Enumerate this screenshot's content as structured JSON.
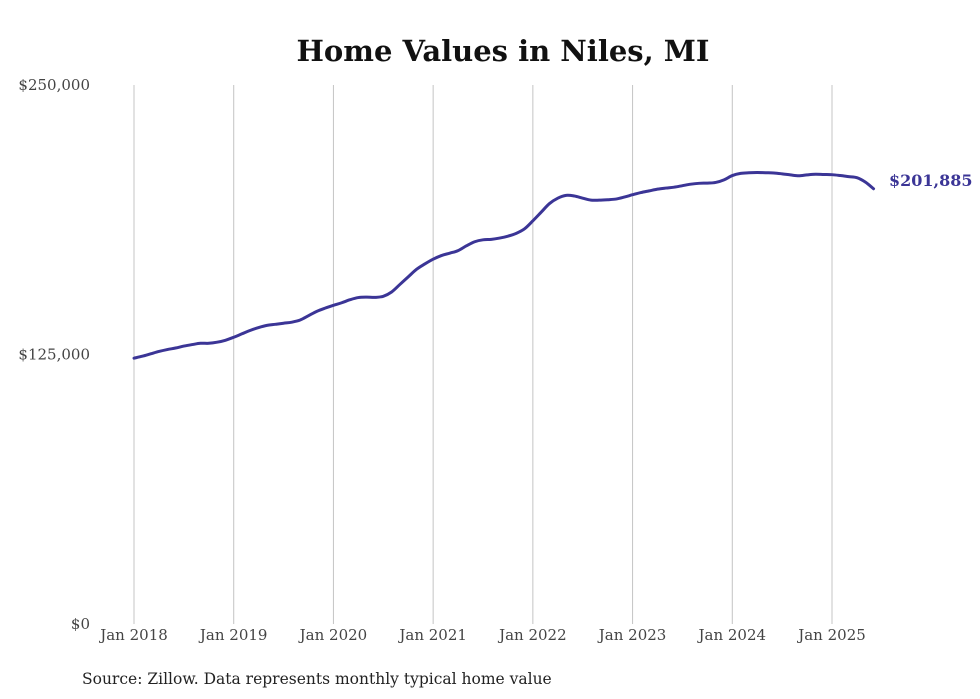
{
  "chart_data": {
    "type": "line",
    "title": "Home Values in Niles, MI",
    "xlabel": "",
    "ylabel": "",
    "ylim": [
      0,
      250000
    ],
    "y_ticks": [
      {
        "value": 0,
        "label": "$0"
      },
      {
        "value": 125000,
        "label": "$125,000"
      },
      {
        "value": 250000,
        "label": "$250,000"
      }
    ],
    "x_ticks": [
      {
        "value": "2018-01",
        "label": "Jan 2018"
      },
      {
        "value": "2019-01",
        "label": "Jan 2019"
      },
      {
        "value": "2020-01",
        "label": "Jan 2020"
      },
      {
        "value": "2021-01",
        "label": "Jan 2021"
      },
      {
        "value": "2022-01",
        "label": "Jan 2022"
      },
      {
        "value": "2023-01",
        "label": "Jan 2023"
      },
      {
        "value": "2024-01",
        "label": "Jan 2024"
      },
      {
        "value": "2025-01",
        "label": "Jan 2025"
      }
    ],
    "xlim": [
      "2018-01",
      "2025-06"
    ],
    "grid": "vertical",
    "line_color": "#3b3596",
    "series": [
      {
        "x": [
          "2018-01",
          "2018-02",
          "2018-03",
          "2018-04",
          "2018-05",
          "2018-06",
          "2018-07",
          "2018-08",
          "2018-09",
          "2018-10",
          "2018-11",
          "2018-12",
          "2019-01",
          "2019-02",
          "2019-03",
          "2019-04",
          "2019-05",
          "2019-06",
          "2019-07",
          "2019-08",
          "2019-09",
          "2019-10",
          "2019-11",
          "2019-12",
          "2020-01",
          "2020-02",
          "2020-03",
          "2020-04",
          "2020-05",
          "2020-06",
          "2020-07",
          "2020-08",
          "2020-09",
          "2020-10",
          "2020-11",
          "2020-12",
          "2021-01",
          "2021-02",
          "2021-03",
          "2021-04",
          "2021-05",
          "2021-06",
          "2021-07",
          "2021-08",
          "2021-09",
          "2021-10",
          "2021-11",
          "2021-12",
          "2022-01",
          "2022-02",
          "2022-03",
          "2022-04",
          "2022-05",
          "2022-06",
          "2022-07",
          "2022-08",
          "2022-09",
          "2022-10",
          "2022-11",
          "2022-12",
          "2023-01",
          "2023-02",
          "2023-03",
          "2023-04",
          "2023-05",
          "2023-06",
          "2023-07",
          "2023-08",
          "2023-09",
          "2023-10",
          "2023-11",
          "2023-12",
          "2024-01",
          "2024-02",
          "2024-03",
          "2024-04",
          "2024-05",
          "2024-06",
          "2024-07",
          "2024-08",
          "2024-09",
          "2024-10",
          "2024-11",
          "2024-12",
          "2025-01",
          "2025-02",
          "2025-03",
          "2025-04",
          "2025-05",
          "2025-06"
        ],
        "y": [
          123300,
          124200,
          125300,
          126400,
          127300,
          128000,
          128900,
          129600,
          130200,
          130200,
          130700,
          131600,
          133000,
          134600,
          136200,
          137500,
          138500,
          139000,
          139500,
          140000,
          141000,
          143000,
          145000,
          146500,
          147800,
          149000,
          150400,
          151400,
          151600,
          151500,
          152000,
          154000,
          157500,
          161000,
          164500,
          167000,
          169200,
          170900,
          172000,
          173200,
          175400,
          177300,
          178200,
          178400,
          179000,
          179900,
          181200,
          183300,
          187000,
          191000,
          195000,
          197500,
          198800,
          198500,
          197500,
          196600,
          196600,
          196800,
          197100,
          198000,
          199100,
          200100,
          200900,
          201700,
          202200,
          202600,
          203300,
          204000,
          204400,
          204500,
          204800,
          206000,
          208000,
          209000,
          209300,
          209400,
          209300,
          209200,
          208800,
          208300,
          207900,
          208300,
          208600,
          208500,
          208400,
          208000,
          207500,
          207000,
          205000,
          201885
        ]
      }
    ],
    "end_label": "$201,885",
    "source": "Source: Zillow. Data represents monthly typical home value"
  }
}
